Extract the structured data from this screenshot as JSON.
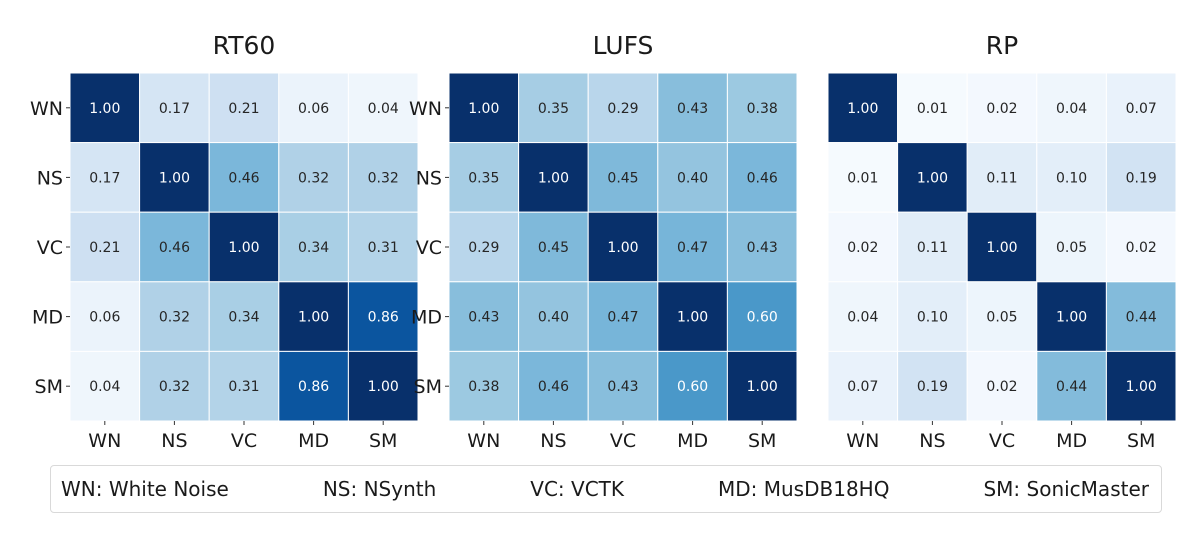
{
  "chart_data": [
    {
      "type": "heatmap",
      "title": "RT60",
      "x_labels": [
        "WN",
        "NS",
        "VC",
        "MD",
        "SM"
      ],
      "y_labels": [
        "WN",
        "NS",
        "VC",
        "MD",
        "SM"
      ],
      "values": [
        [
          1.0,
          0.17,
          0.21,
          0.06,
          0.04
        ],
        [
          0.17,
          1.0,
          0.46,
          0.32,
          0.32
        ],
        [
          0.21,
          0.46,
          1.0,
          0.34,
          0.31
        ],
        [
          0.06,
          0.32,
          0.34,
          1.0,
          0.86
        ],
        [
          0.04,
          0.32,
          0.31,
          0.86,
          1.0
        ]
      ],
      "value_range": [
        0,
        1
      ],
      "colormap": "Blues"
    },
    {
      "type": "heatmap",
      "title": "LUFS",
      "x_labels": [
        "WN",
        "NS",
        "VC",
        "MD",
        "SM"
      ],
      "y_labels": [
        "WN",
        "NS",
        "VC",
        "MD",
        "SM"
      ],
      "values": [
        [
          1.0,
          0.35,
          0.29,
          0.43,
          0.38
        ],
        [
          0.35,
          1.0,
          0.45,
          0.4,
          0.46
        ],
        [
          0.29,
          0.45,
          1.0,
          0.47,
          0.43
        ],
        [
          0.43,
          0.4,
          0.47,
          1.0,
          0.6
        ],
        [
          0.38,
          0.46,
          0.43,
          0.6,
          1.0
        ]
      ],
      "value_range": [
        0,
        1
      ],
      "colormap": "Blues"
    },
    {
      "type": "heatmap",
      "title": "RP",
      "x_labels": [
        "WN",
        "NS",
        "VC",
        "MD",
        "SM"
      ],
      "y_labels": [],
      "values": [
        [
          1.0,
          0.01,
          0.02,
          0.04,
          0.07
        ],
        [
          0.01,
          1.0,
          0.11,
          0.1,
          0.19
        ],
        [
          0.02,
          0.11,
          1.0,
          0.05,
          0.02
        ],
        [
          0.04,
          0.1,
          0.05,
          1.0,
          0.44
        ],
        [
          0.07,
          0.19,
          0.02,
          0.44,
          1.0
        ]
      ],
      "value_range": [
        0,
        1
      ],
      "colormap": "Blues"
    }
  ],
  "legend": [
    "WN: White Noise",
    "NS: NSynth",
    "VC: VCTK",
    "MD: MusDB18HQ",
    "SM: SonicMaster"
  ]
}
